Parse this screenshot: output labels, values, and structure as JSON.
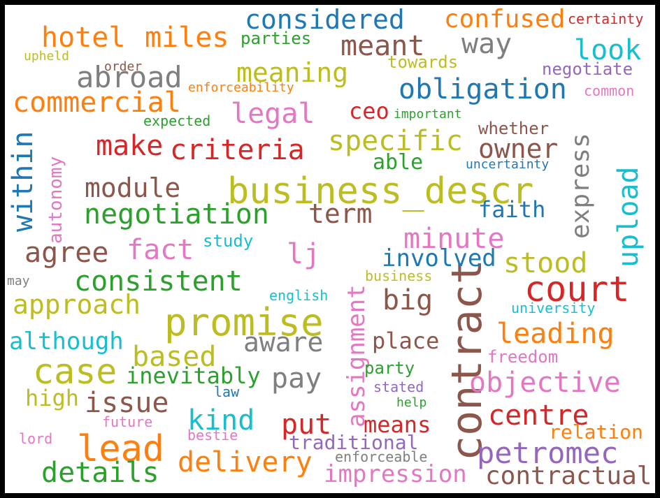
{
  "background": "#ffffff",
  "frame_color": "#000000",
  "palette": {
    "blue": "#1f77b4",
    "orange": "#ff7f0e",
    "green": "#2ca02c",
    "red": "#d62728",
    "purple": "#9467bd",
    "brown": "#8c564b",
    "pink": "#e377c2",
    "gray": "#7f7f7f",
    "olive": "#bcbd22",
    "cyan": "#17becf"
  },
  "words": [
    {
      "id": "business_descr",
      "text": "business_descr",
      "color": "#bcbd22",
      "orientation": "horizontal"
    },
    {
      "id": "contract",
      "text": "contract",
      "color": "#8c564b",
      "orientation": "vertical"
    },
    {
      "id": "promise",
      "text": "promise",
      "color": "#bcbd22",
      "orientation": "horizontal"
    },
    {
      "id": "lead",
      "text": "lead",
      "color": "#ff7f0e",
      "orientation": "horizontal"
    },
    {
      "id": "case",
      "text": "case",
      "color": "#bcbd22",
      "orientation": "horizontal"
    },
    {
      "id": "court",
      "text": "court",
      "color": "#d62728",
      "orientation": "horizontal"
    },
    {
      "id": "obligation",
      "text": "obligation",
      "color": "#1f77b4",
      "orientation": "horizontal"
    },
    {
      "id": "hotel",
      "text": "hotel",
      "color": "#ff7f0e",
      "orientation": "horizontal"
    },
    {
      "id": "miles",
      "text": "miles",
      "color": "#ff7f0e",
      "orientation": "horizontal"
    },
    {
      "id": "considered",
      "text": "considered",
      "color": "#1f77b4",
      "orientation": "horizontal"
    },
    {
      "id": "confused",
      "text": "confused",
      "color": "#ff7f0e",
      "orientation": "horizontal"
    },
    {
      "id": "certainty",
      "text": "certainty",
      "color": "#d62728",
      "orientation": "horizontal"
    },
    {
      "id": "meant",
      "text": "meant",
      "color": "#8c564b",
      "orientation": "horizontal"
    },
    {
      "id": "way",
      "text": "way",
      "color": "#7f7f7f",
      "orientation": "horizontal"
    },
    {
      "id": "look",
      "text": "look",
      "color": "#17becf",
      "orientation": "horizontal"
    },
    {
      "id": "parties",
      "text": "parties",
      "color": "#2ca02c",
      "orientation": "horizontal"
    },
    {
      "id": "upheld",
      "text": "upheld",
      "color": "#bcbd22",
      "orientation": "horizontal"
    },
    {
      "id": "order",
      "text": "order",
      "color": "#8c564b",
      "orientation": "horizontal"
    },
    {
      "id": "towards",
      "text": "towards",
      "color": "#bcbd22",
      "orientation": "horizontal"
    },
    {
      "id": "negotiate",
      "text": "negotiate",
      "color": "#9467bd",
      "orientation": "horizontal"
    },
    {
      "id": "abroad",
      "text": "abroad",
      "color": "#7f7f7f",
      "orientation": "horizontal"
    },
    {
      "id": "meaning",
      "text": "meaning",
      "color": "#bcbd22",
      "orientation": "horizontal"
    },
    {
      "id": "enforceability",
      "text": "enforceability",
      "color": "#ff7f0e",
      "orientation": "horizontal"
    },
    {
      "id": "common",
      "text": "common",
      "color": "#e377c2",
      "orientation": "horizontal"
    },
    {
      "id": "commercial",
      "text": "commercial",
      "color": "#ff7f0e",
      "orientation": "horizontal"
    },
    {
      "id": "legal",
      "text": "legal",
      "color": "#e377c2",
      "orientation": "horizontal"
    },
    {
      "id": "ceo",
      "text": "ceo",
      "color": "#d62728",
      "orientation": "horizontal"
    },
    {
      "id": "important",
      "text": "important",
      "color": "#2ca02c",
      "orientation": "horizontal"
    },
    {
      "id": "expected",
      "text": "expected",
      "color": "#2ca02c",
      "orientation": "horizontal"
    },
    {
      "id": "whether",
      "text": "whether",
      "color": "#8c564b",
      "orientation": "horizontal"
    },
    {
      "id": "express",
      "text": "express",
      "color": "#7f7f7f",
      "orientation": "vertical"
    },
    {
      "id": "within",
      "text": "within",
      "color": "#1f77b4",
      "orientation": "vertical"
    },
    {
      "id": "autonomy",
      "text": "autonomy",
      "color": "#e377c2",
      "orientation": "vertical"
    },
    {
      "id": "make",
      "text": "make",
      "color": "#d62728",
      "orientation": "horizontal"
    },
    {
      "id": "criteria",
      "text": "criteria",
      "color": "#d62728",
      "orientation": "horizontal"
    },
    {
      "id": "specific",
      "text": "specific",
      "color": "#bcbd22",
      "orientation": "horizontal"
    },
    {
      "id": "owner",
      "text": "owner",
      "color": "#8c564b",
      "orientation": "horizontal"
    },
    {
      "id": "able",
      "text": "able",
      "color": "#2ca02c",
      "orientation": "horizontal"
    },
    {
      "id": "uncertainty",
      "text": "uncertainty",
      "color": "#1f77b4",
      "orientation": "horizontal"
    },
    {
      "id": "upload",
      "text": "upload",
      "color": "#17becf",
      "orientation": "vertical"
    },
    {
      "id": "module",
      "text": "module",
      "color": "#8c564b",
      "orientation": "horizontal"
    },
    {
      "id": "negotiation",
      "text": "negotiation",
      "color": "#2ca02c",
      "orientation": "horizontal"
    },
    {
      "id": "term",
      "text": "term",
      "color": "#8c564b",
      "orientation": "horizontal"
    },
    {
      "id": "faith",
      "text": "faith",
      "color": "#1f77b4",
      "orientation": "horizontal"
    },
    {
      "id": "agree",
      "text": "agree",
      "color": "#8c564b",
      "orientation": "horizontal"
    },
    {
      "id": "fact",
      "text": "fact",
      "color": "#e377c2",
      "orientation": "horizontal"
    },
    {
      "id": "study",
      "text": "study",
      "color": "#17becf",
      "orientation": "horizontal"
    },
    {
      "id": "lj",
      "text": "lj",
      "color": "#e377c2",
      "orientation": "horizontal"
    },
    {
      "id": "assignment",
      "text": "assignment",
      "color": "#e377c2",
      "orientation": "vertical"
    },
    {
      "id": "minute",
      "text": "minute",
      "color": "#e377c2",
      "orientation": "horizontal"
    },
    {
      "id": "involved",
      "text": "involved",
      "color": "#1f77b4",
      "orientation": "horizontal"
    },
    {
      "id": "stood",
      "text": "stood",
      "color": "#bcbd22",
      "orientation": "horizontal"
    },
    {
      "id": "may",
      "text": "may",
      "color": "#7f7f7f",
      "orientation": "horizontal"
    },
    {
      "id": "consistent",
      "text": "consistent",
      "color": "#2ca02c",
      "orientation": "horizontal"
    },
    {
      "id": "business",
      "text": "business",
      "color": "#bcbd22",
      "orientation": "horizontal"
    },
    {
      "id": "english",
      "text": "english",
      "color": "#17becf",
      "orientation": "horizontal"
    },
    {
      "id": "big",
      "text": "big",
      "color": "#8c564b",
      "orientation": "horizontal"
    },
    {
      "id": "university",
      "text": "university",
      "color": "#17becf",
      "orientation": "horizontal"
    },
    {
      "id": "approach",
      "text": "approach",
      "color": "#bcbd22",
      "orientation": "horizontal"
    },
    {
      "id": "although",
      "text": "although",
      "color": "#17becf",
      "orientation": "horizontal"
    },
    {
      "id": "aware",
      "text": "aware",
      "color": "#7f7f7f",
      "orientation": "horizontal"
    },
    {
      "id": "place",
      "text": "place",
      "color": "#8c564b",
      "orientation": "horizontal"
    },
    {
      "id": "leading",
      "text": "leading",
      "color": "#ff7f0e",
      "orientation": "horizontal"
    },
    {
      "id": "based",
      "text": "based",
      "color": "#bcbd22",
      "orientation": "horizontal"
    },
    {
      "id": "freedom",
      "text": "freedom",
      "color": "#e377c2",
      "orientation": "horizontal"
    },
    {
      "id": "party",
      "text": "party",
      "color": "#2ca02c",
      "orientation": "horizontal"
    },
    {
      "id": "inevitably",
      "text": "inevitably",
      "color": "#2ca02c",
      "orientation": "horizontal"
    },
    {
      "id": "pay",
      "text": "pay",
      "color": "#7f7f7f",
      "orientation": "horizontal"
    },
    {
      "id": "objective",
      "text": "objective",
      "color": "#e377c2",
      "orientation": "horizontal"
    },
    {
      "id": "stated",
      "text": "stated",
      "color": "#9467bd",
      "orientation": "horizontal"
    },
    {
      "id": "high",
      "text": "high",
      "color": "#bcbd22",
      "orientation": "horizontal"
    },
    {
      "id": "issue",
      "text": "issue",
      "color": "#8c564b",
      "orientation": "horizontal"
    },
    {
      "id": "law",
      "text": "law",
      "color": "#1f77b4",
      "orientation": "horizontal"
    },
    {
      "id": "help",
      "text": "help",
      "color": "#2ca02c",
      "orientation": "horizontal"
    },
    {
      "id": "centre",
      "text": "centre",
      "color": "#d62728",
      "orientation": "horizontal"
    },
    {
      "id": "kind",
      "text": "kind",
      "color": "#17becf",
      "orientation": "horizontal"
    },
    {
      "id": "future",
      "text": "future",
      "color": "#e377c2",
      "orientation": "horizontal"
    },
    {
      "id": "put",
      "text": "put",
      "color": "#d62728",
      "orientation": "horizontal"
    },
    {
      "id": "means",
      "text": "means",
      "color": "#d62728",
      "orientation": "horizontal"
    },
    {
      "id": "relation",
      "text": "relation",
      "color": "#ff7f0e",
      "orientation": "horizontal"
    },
    {
      "id": "lord",
      "text": "lord",
      "color": "#e377c2",
      "orientation": "horizontal"
    },
    {
      "id": "bestie",
      "text": "bestie",
      "color": "#e377c2",
      "orientation": "horizontal"
    },
    {
      "id": "traditional",
      "text": "traditional",
      "color": "#9467bd",
      "orientation": "horizontal"
    },
    {
      "id": "petromec",
      "text": "petromec",
      "color": "#9467bd",
      "orientation": "horizontal"
    },
    {
      "id": "delivery",
      "text": "delivery",
      "color": "#ff7f0e",
      "orientation": "horizontal"
    },
    {
      "id": "enforceable",
      "text": "enforceable",
      "color": "#7f7f7f",
      "orientation": "horizontal"
    },
    {
      "id": "details",
      "text": "details",
      "color": "#2ca02c",
      "orientation": "horizontal"
    },
    {
      "id": "impression",
      "text": "impression",
      "color": "#e377c2",
      "orientation": "horizontal"
    },
    {
      "id": "contractual",
      "text": "contractual",
      "color": "#8c564b",
      "orientation": "horizontal"
    }
  ]
}
